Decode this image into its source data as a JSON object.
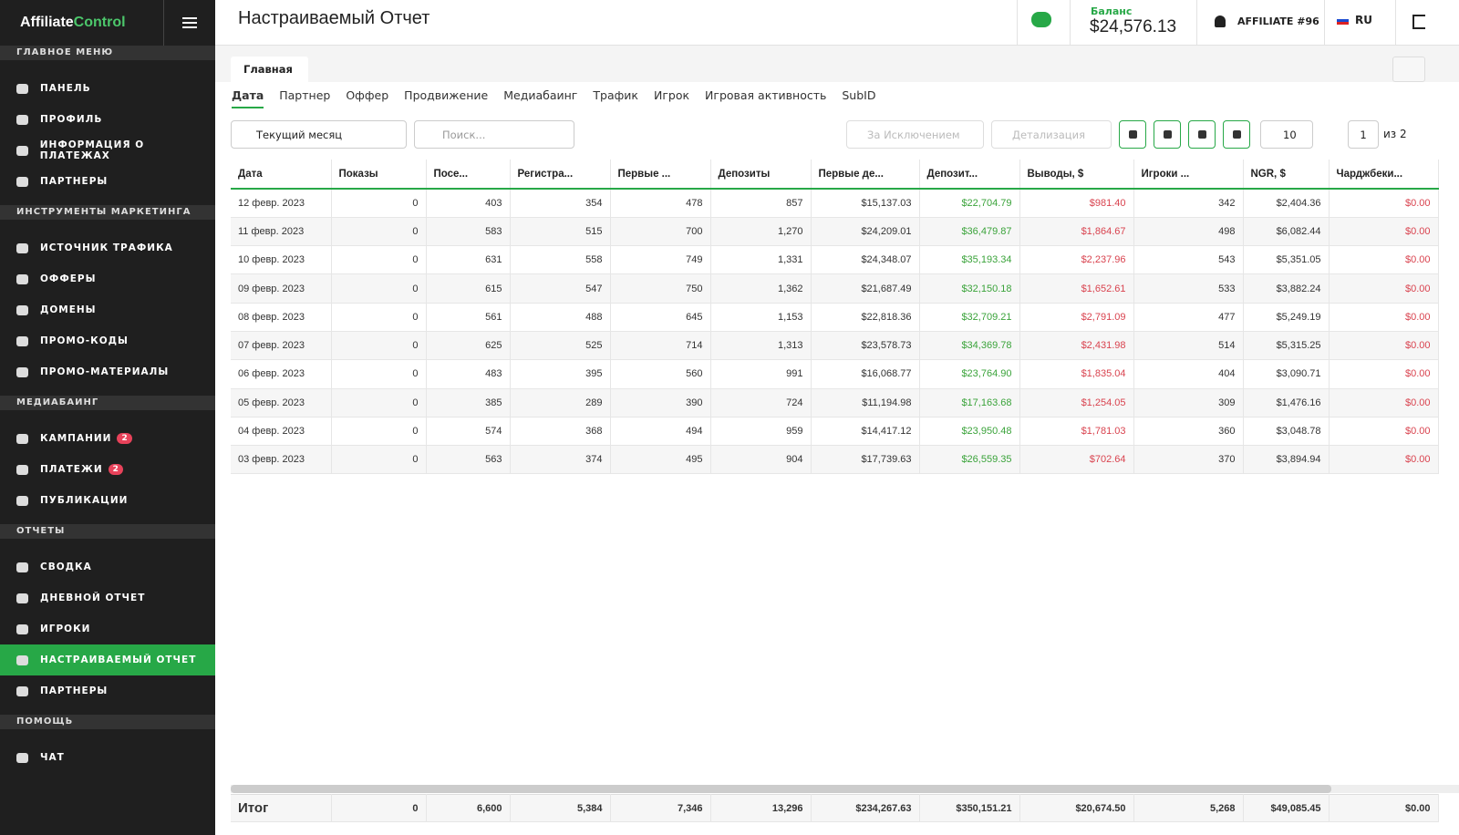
{
  "logo": {
    "part1": "Affiliate",
    "part2": "Control"
  },
  "sidebar": {
    "sections": [
      {
        "title": "ГЛАВНОЕ МЕНЮ",
        "items": [
          {
            "label": "ПАНЕЛЬ"
          },
          {
            "label": "ПРОФИЛЬ"
          },
          {
            "label": "ИНФОРМАЦИЯ О ПЛАТЕЖАХ"
          },
          {
            "label": "ПАРТНЕРЫ"
          }
        ]
      },
      {
        "title": "ИНСТРУМЕНТЫ МАРКЕТИНГА",
        "items": [
          {
            "label": "ИСТОЧНИК ТРАФИКА"
          },
          {
            "label": "ОФФЕРЫ"
          },
          {
            "label": "ДОМЕНЫ"
          },
          {
            "label": "ПРОМО-КОДЫ"
          },
          {
            "label": "ПРОМО-МАТЕРИАЛЫ"
          }
        ]
      },
      {
        "title": "МЕДИАБАИНГ",
        "items": [
          {
            "label": "КАМПАНИИ",
            "badge": "2"
          },
          {
            "label": "ПЛАТЕЖИ",
            "badge": "2"
          },
          {
            "label": "ПУБЛИКАЦИИ"
          }
        ]
      },
      {
        "title": "ОТЧЕТЫ",
        "items": [
          {
            "label": "СВОДКА"
          },
          {
            "label": "ДНЕВНОЙ ОТЧЕТ"
          },
          {
            "label": "ИГРОКИ"
          },
          {
            "label": "НАСТРАИВАЕМЫЙ ОТЧЕТ",
            "active": true
          },
          {
            "label": "ПАРТНЕРЫ"
          }
        ]
      },
      {
        "title": "ПОМОЩЬ",
        "items": [
          {
            "label": "ЧАТ"
          }
        ]
      }
    ]
  },
  "header": {
    "title": "Настраиваемый Отчет",
    "balance_label": "Баланс",
    "balance": "$24,576.13",
    "user": "AFFILIATE #96",
    "lang": "RU"
  },
  "tab": "Главная",
  "filters": [
    "Дата",
    "Партнер",
    "Оффер",
    "Продвижение",
    "Медиабаинг",
    "Трафик",
    "Игрок",
    "Игровая активность",
    "SubID"
  ],
  "toolbar": {
    "period": "Текущий месяц",
    "search": "Поиск...",
    "exclude": "За Исключением",
    "detail": "Детализация",
    "per_page": "10",
    "page": "1",
    "of": "из 2"
  },
  "table": {
    "columns": [
      "Дата",
      "Показы",
      "Посе...",
      "Регистра...",
      "Первые ...",
      "Депозиты",
      "Первые де...",
      "Депозит...",
      "Выводы, $",
      "Игроки ...",
      "NGR, $",
      "Чарджбеки..."
    ],
    "rows": [
      [
        "12 февр. 2023",
        "0",
        "403",
        "354",
        "478",
        "857",
        "$15,137.03",
        "$22,704.79",
        "$981.40",
        "342",
        "$2,404.36",
        "$0.00"
      ],
      [
        "11 февр. 2023",
        "0",
        "583",
        "515",
        "700",
        "1,270",
        "$24,209.01",
        "$36,479.87",
        "$1,864.67",
        "498",
        "$6,082.44",
        "$0.00"
      ],
      [
        "10 февр. 2023",
        "0",
        "631",
        "558",
        "749",
        "1,331",
        "$24,348.07",
        "$35,193.34",
        "$2,237.96",
        "543",
        "$5,351.05",
        "$0.00"
      ],
      [
        "09 февр. 2023",
        "0",
        "615",
        "547",
        "750",
        "1,362",
        "$21,687.49",
        "$32,150.18",
        "$1,652.61",
        "533",
        "$3,882.24",
        "$0.00"
      ],
      [
        "08 февр. 2023",
        "0",
        "561",
        "488",
        "645",
        "1,153",
        "$22,818.36",
        "$32,709.21",
        "$2,791.09",
        "477",
        "$5,249.19",
        "$0.00"
      ],
      [
        "07 февр. 2023",
        "0",
        "625",
        "525",
        "714",
        "1,313",
        "$23,578.73",
        "$34,369.78",
        "$2,431.98",
        "514",
        "$5,315.25",
        "$0.00"
      ],
      [
        "06 февр. 2023",
        "0",
        "483",
        "395",
        "560",
        "991",
        "$16,068.77",
        "$23,764.90",
        "$1,835.04",
        "404",
        "$3,090.71",
        "$0.00"
      ],
      [
        "05 февр. 2023",
        "0",
        "385",
        "289",
        "390",
        "724",
        "$11,194.98",
        "$17,163.68",
        "$1,254.05",
        "309",
        "$1,476.16",
        "$0.00"
      ],
      [
        "04 февр. 2023",
        "0",
        "574",
        "368",
        "494",
        "959",
        "$14,417.12",
        "$23,950.48",
        "$1,781.03",
        "360",
        "$3,048.78",
        "$0.00"
      ],
      [
        "03 февр. 2023",
        "0",
        "563",
        "374",
        "495",
        "904",
        "$17,739.63",
        "$26,559.35",
        "$702.64",
        "370",
        "$3,894.94",
        "$0.00"
      ]
    ],
    "total": [
      "Итог",
      "0",
      "6,600",
      "5,384",
      "7,346",
      "13,296",
      "$234,267.63",
      "$350,151.21",
      "$20,674.50",
      "5,268",
      "$49,085.45",
      "$0.00"
    ]
  }
}
